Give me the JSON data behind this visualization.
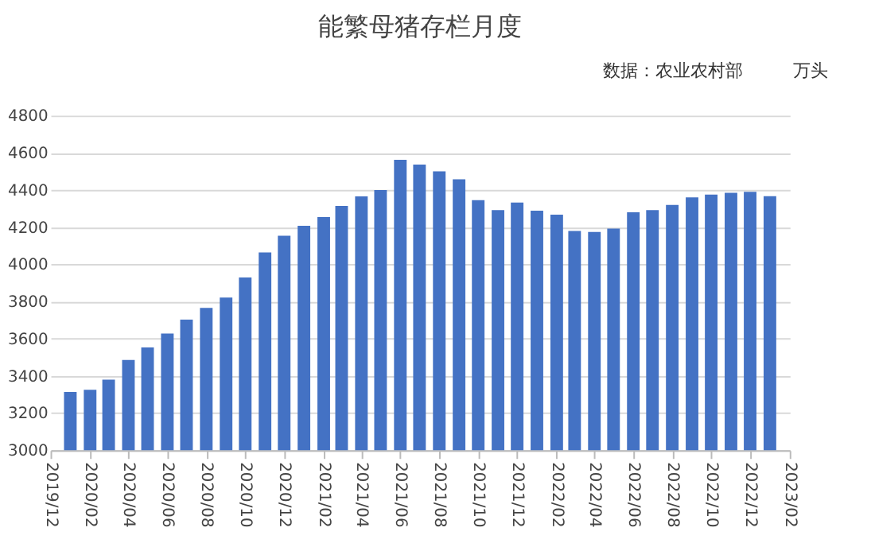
{
  "chart_data": {
    "type": "bar",
    "title": "能繁母猪存栏月度",
    "annotations": [
      "数据：农业农村部",
      "万头"
    ],
    "x": [
      "2020-01",
      "2020-02",
      "2020-03",
      "2020-04",
      "2020-05",
      "2020-06",
      "2020-07",
      "2020-08",
      "2020-09",
      "2020-10",
      "2020-11",
      "2020-12",
      "2021-01",
      "2021-02",
      "2021-03",
      "2021-04",
      "2021-05",
      "2021-06",
      "2021-07",
      "2021-08",
      "2021-09",
      "2021-10",
      "2021-11",
      "2021-12",
      "2022-01",
      "2022-02",
      "2022-03",
      "2022-04",
      "2022-05",
      "2022-06",
      "2022-07",
      "2022-08",
      "2022-09",
      "2022-10",
      "2022-11",
      "2022-12",
      "2023-01"
    ],
    "values": [
      3313,
      3325,
      3380,
      3486,
      3553,
      3628,
      3703,
      3766,
      3821,
      3929,
      4064,
      4154,
      4207,
      4254,
      4314,
      4365,
      4400,
      4562,
      4537,
      4500,
      4457,
      4345,
      4292,
      4332,
      4289,
      4267,
      4179,
      4174,
      4192,
      4280,
      4292,
      4320,
      4360,
      4375,
      4385,
      4390,
      4367
    ],
    "color": "#4472c4",
    "xlim": [
      "2019-12",
      "2023-02"
    ],
    "xticks": [
      {
        "value": "2019-12",
        "label": "2019/12"
      },
      {
        "value": "2020-02",
        "label": "2020/02"
      },
      {
        "value": "2020-04",
        "label": "2020/04"
      },
      {
        "value": "2020-06",
        "label": "2020/06"
      },
      {
        "value": "2020-08",
        "label": "2020/08"
      },
      {
        "value": "2020-10",
        "label": "2020/10"
      },
      {
        "value": "2020-12",
        "label": "2020/12"
      },
      {
        "value": "2021-02",
        "label": "2021/02"
      },
      {
        "value": "2021-04",
        "label": "2021/04"
      },
      {
        "value": "2021-06",
        "label": "2021/06"
      },
      {
        "value": "2021-08",
        "label": "2021/08"
      },
      {
        "value": "2021-10",
        "label": "2021/10"
      },
      {
        "value": "2021-12",
        "label": "2021/12"
      },
      {
        "value": "2022-02",
        "label": "2022/02"
      },
      {
        "value": "2022-04",
        "label": "2022/04"
      },
      {
        "value": "2022-06",
        "label": "2022/06"
      },
      {
        "value": "2022-08",
        "label": "2022/08"
      },
      {
        "value": "2022-10",
        "label": "2022/10"
      },
      {
        "value": "2022-12",
        "label": "2022/12"
      },
      {
        "value": "2023-02",
        "label": "2023/02"
      }
    ],
    "ylim": [
      3000,
      4800
    ],
    "yticks": [
      3000,
      3200,
      3400,
      3600,
      3800,
      4000,
      4200,
      4400,
      4600,
      4800
    ],
    "grid": "y"
  }
}
